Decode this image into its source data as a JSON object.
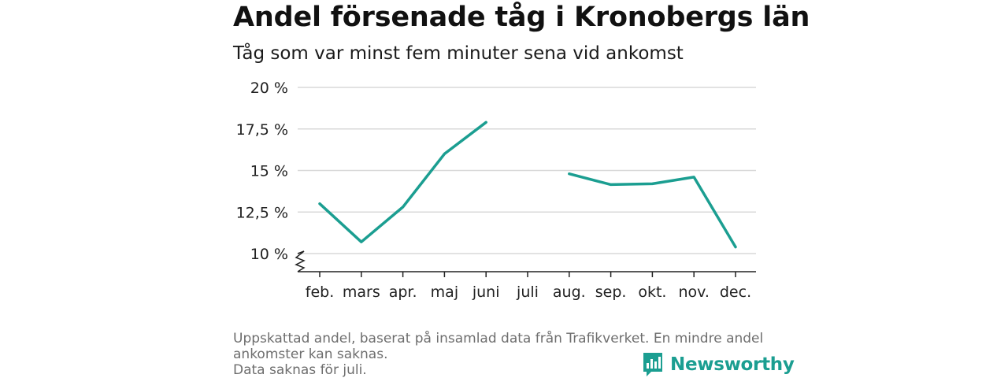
{
  "header": {
    "title": "Andel försenade tåg i Kronobergs län",
    "subtitle": "Tåg som var minst fem minuter sena vid ankomst"
  },
  "chart_data": {
    "type": "line",
    "categories": [
      "feb.",
      "mars",
      "apr.",
      "maj",
      "juni",
      "juli",
      "aug.",
      "sep.",
      "okt.",
      "nov.",
      "dec."
    ],
    "series": [
      {
        "values": [
          13.0,
          10.7,
          12.8,
          16.0,
          17.9,
          null,
          14.8,
          14.15,
          14.2,
          14.6,
          10.4
        ]
      }
    ],
    "y_ticks": [
      10,
      12.5,
      15,
      17.5,
      20
    ],
    "y_tick_labels": [
      "10 %",
      "12,5 %",
      "15 %",
      "17,5 %",
      "20 %"
    ],
    "ylim": [
      9.0,
      20.0
    ],
    "grid": true,
    "axis_break": true,
    "line_color": "#1b9e91"
  },
  "footnote": {
    "line1": "Uppskattad andel, baserat på insamlad data från Trafikverket. En mindre andel",
    "line2": "ankomster kan saknas.",
    "line3": "Data saknas för juli."
  },
  "brand": {
    "name": "Newsworthy",
    "icon": "newsworthy-logo-icon",
    "color": "#1b9e91"
  }
}
